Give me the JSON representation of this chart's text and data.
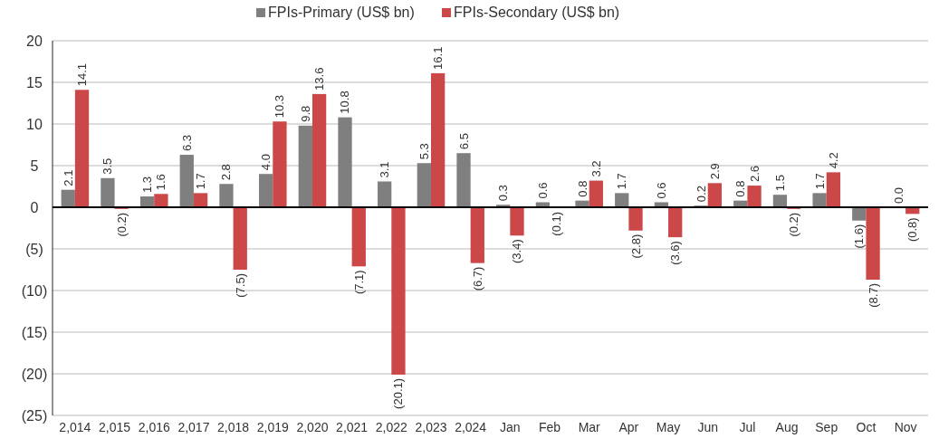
{
  "chart_data": {
    "type": "bar",
    "categories": [
      "2,014",
      "2,015",
      "2,016",
      "2,017",
      "2,018",
      "2,019",
      "2,020",
      "2,021",
      "2,022",
      "2,023",
      "2,024",
      "Jan",
      "Feb",
      "Mar",
      "Apr",
      "May",
      "Jun",
      "Jul",
      "Aug",
      "Sep",
      "Oct",
      "Nov"
    ],
    "series": [
      {
        "name": "FPIs-Primary (US$ bn)",
        "color": "#7f7f7f",
        "values": [
          2.1,
          3.5,
          1.3,
          6.3,
          2.8,
          4.0,
          9.8,
          10.8,
          3.1,
          5.3,
          6.5,
          0.3,
          0.6,
          0.8,
          1.7,
          0.6,
          0.2,
          0.8,
          1.5,
          1.7,
          -1.6,
          0.0
        ],
        "value_labels": [
          "2.1",
          "3.5",
          "1.3",
          "6.3",
          "2.8",
          "4.0",
          "9.8",
          "10.8",
          "3.1",
          "5.3",
          "6.5",
          "0.3",
          "0.6",
          "0.8",
          "1.7",
          "0.6",
          "0.2",
          "0.8",
          "1.5",
          "1.7",
          "(1.6)",
          "0.0"
        ]
      },
      {
        "name": "FPIs-Secondary (US$ bn)",
        "color": "#cc4748",
        "values": [
          14.1,
          -0.2,
          1.6,
          1.7,
          -7.5,
          10.3,
          13.6,
          -7.1,
          -20.1,
          16.1,
          -6.7,
          -3.4,
          -0.1,
          3.2,
          -2.8,
          -3.6,
          2.9,
          2.6,
          -0.2,
          4.2,
          -8.7,
          -0.8
        ],
        "value_labels": [
          "14.1",
          "(0.2)",
          "1.6",
          "1.7",
          "(7.5)",
          "10.3",
          "13.6",
          "(7.1)",
          "(20.1)",
          "16.1",
          "(6.7)",
          "(3.4)",
          "(0.1)",
          "3.2",
          "(2.8)",
          "(3.6)",
          "2.9",
          "2.6",
          "(0.2)",
          "4.2",
          "(8.7)",
          "(0.8)"
        ]
      }
    ],
    "ylim": [
      -25,
      20
    ],
    "yticks": [
      {
        "value": -25,
        "label": "(25)"
      },
      {
        "value": -20,
        "label": "(20)"
      },
      {
        "value": -15,
        "label": "(15)"
      },
      {
        "value": -10,
        "label": "(10)"
      },
      {
        "value": -5,
        "label": "(5)"
      },
      0,
      5,
      10,
      15,
      20
    ],
    "grid": "y",
    "legend": "top"
  }
}
